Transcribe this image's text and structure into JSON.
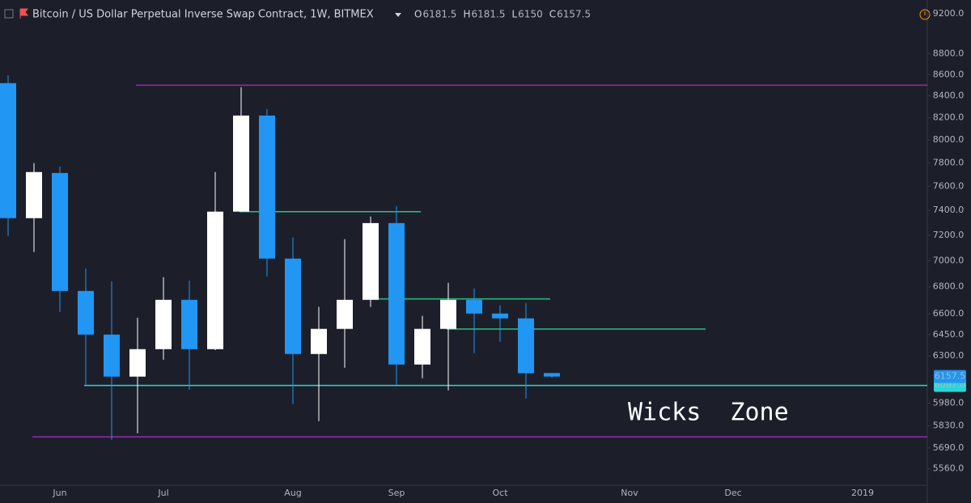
{
  "chart_data": {
    "type": "candlestick",
    "title": "Bitcoin / US Dollar Perpetual Inverse Swap Contract, 1W, BITMEX",
    "header_values": [
      {
        "label": "O",
        "value": 6181.5
      },
      {
        "label": "H",
        "value": 6181.5
      },
      {
        "label": "L",
        "value": 6150.0
      },
      {
        "label": "C",
        "value": 6157.5
      }
    ],
    "categories": [
      null,
      null,
      "Jun",
      null,
      null,
      null,
      "Jul",
      null,
      null,
      null,
      null,
      "Aug",
      null,
      null,
      null,
      "Sep",
      null,
      null,
      null,
      "Oct",
      null,
      null,
      null,
      null,
      "Nov",
      null,
      null,
      null,
      "Dec",
      null,
      null,
      null,
      null,
      "2019"
    ],
    "open": [
      8519,
      7337,
      7713,
      6769,
      6450,
      6157,
      6347,
      6703,
      6347,
      7390,
      8219,
      7016,
      6313,
      6491,
      6703,
      7297,
      6240,
      6491,
      6703,
      6602,
      6567,
      6181.5,
      null,
      null,
      null,
      null,
      null,
      null,
      null,
      null,
      null,
      null,
      null,
      null
    ],
    "high": [
      8593,
      7797,
      7768,
      6940,
      6842,
      6572,
      6873,
      6848,
      7721,
      8481,
      8278,
      7181,
      6650,
      7168,
      7350,
      7435,
      6585,
      6830,
      6788,
      6662,
      6679,
      6181.5,
      null,
      null,
      null,
      null,
      null,
      null,
      null,
      null,
      null,
      null,
      null,
      null
    ],
    "low": [
      7194,
      7067,
      6614,
      6102,
      5742,
      5783,
      6274,
      6069,
      6340,
      7390,
      6879,
      5973,
      5861,
      6218,
      6650,
      6102,
      6146,
      6064,
      6319,
      6399,
      6010,
      6150.0,
      null,
      null,
      null,
      null,
      null,
      null,
      null,
      null,
      null,
      null,
      null,
      null
    ],
    "close": [
      7337,
      7721,
      6769,
      6450,
      6157,
      6347,
      6703,
      6347,
      7390,
      8219,
      7016,
      6313,
      6491,
      6703,
      7297,
      6240,
      6491,
      6703,
      6602,
      6567,
      6180,
      6157.5,
      null,
      null,
      null,
      null,
      null,
      null,
      null,
      null,
      null,
      null,
      null,
      null
    ],
    "up_color": "#ffffff",
    "down_color": "#2196f3",
    "log_scale": true,
    "ylim": [
      5460,
      9340
    ],
    "yticks": [
      {
        "value": 5560,
        "label": "5560.0"
      },
      {
        "value": 5690,
        "label": "5690.0"
      },
      {
        "value": 5830,
        "label": "5830.0"
      },
      {
        "value": 5980,
        "label": "5980.0"
      },
      {
        "value": 6300,
        "label": "6300.0"
      },
      {
        "value": 6450,
        "label": "6450.0"
      },
      {
        "value": 6600,
        "label": "6600.0"
      },
      {
        "value": 6800,
        "label": "6800.0"
      },
      {
        "value": 7000,
        "label": "7000.0"
      },
      {
        "value": 7200,
        "label": "7200.0"
      },
      {
        "value": 7400,
        "label": "7400.0"
      },
      {
        "value": 7600,
        "label": "7600.0"
      },
      {
        "value": 7800,
        "label": "7800.0"
      },
      {
        "value": 8000,
        "label": "8000.0"
      },
      {
        "value": 8200,
        "label": "8200.0"
      },
      {
        "value": 8400,
        "label": "8400.0"
      },
      {
        "value": 8600,
        "label": "8600.0"
      },
      {
        "value": 8800,
        "label": "8800.0"
      },
      {
        "value": 9200,
        "label": "9200.0"
      }
    ],
    "levels": [
      {
        "value": 8500,
        "color": "#9c27b0"
      },
      {
        "value": 5760,
        "color": "#9c27b0"
      },
      {
        "value": 7390,
        "color": "#26c281"
      },
      {
        "value": 6710,
        "color": "#26c281"
      },
      {
        "value": 6490,
        "color": "#26c281"
      },
      {
        "value": 6097,
        "color": "#26d7d7",
        "label": "6097.0"
      }
    ],
    "annotation": "Wicks  Zone"
  }
}
